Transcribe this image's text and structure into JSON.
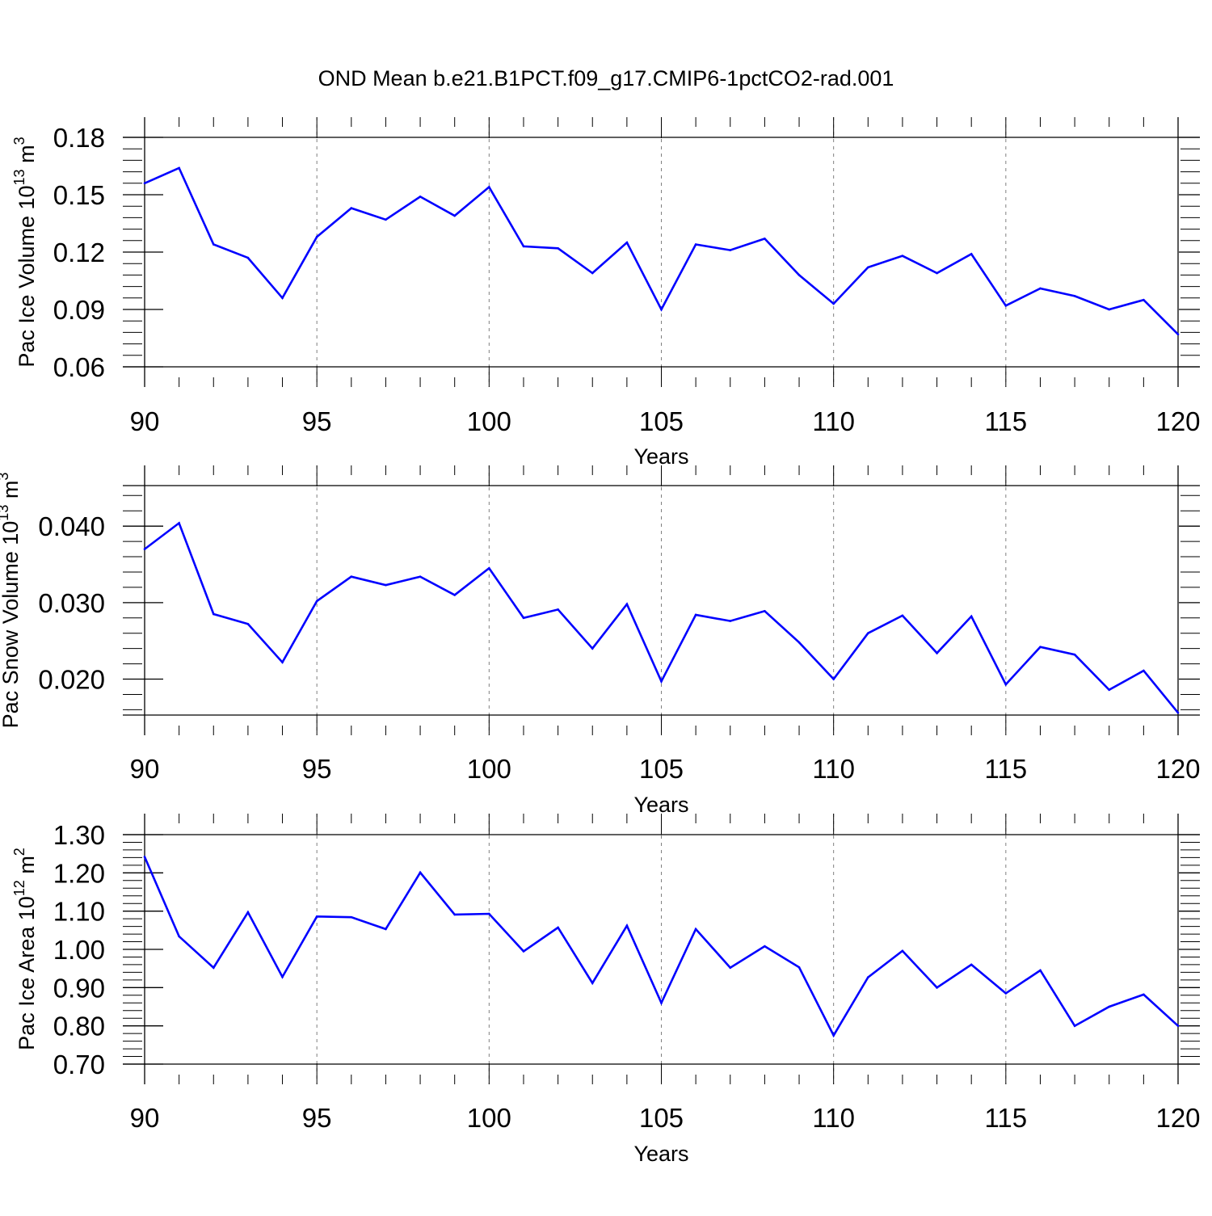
{
  "title": "OND Mean b.e21.B1PCT.f09_g17.CMIP6-1pctCO2-rad.001",
  "colors": {
    "line": "#0000ff",
    "axis": "#000000",
    "grid": "#808080"
  },
  "chart_data": [
    {
      "type": "line",
      "ylabel_base": "Pac Ice Volume 10",
      "ylabel_exp": "13",
      "ylabel_unit": " m",
      "ylabel_unit_exp": "3",
      "xlabel": "Years",
      "xlim": [
        90,
        120
      ],
      "ylim": [
        0.06,
        0.18
      ],
      "xticks": [
        "90",
        "95",
        "100",
        "105",
        "110",
        "115",
        "120"
      ],
      "yticks": [
        "0.06",
        "0.09",
        "0.12",
        "0.15",
        "0.18"
      ],
      "ytick_values": [
        0.06,
        0.09,
        0.12,
        0.15,
        0.18
      ],
      "grid_x": [
        95,
        100,
        105,
        110,
        115
      ],
      "series": [
        {
          "name": "Pac Ice Volume",
          "x": [
            90,
            91,
            92,
            93,
            94,
            95,
            96,
            97,
            98,
            99,
            100,
            101,
            102,
            103,
            104,
            105,
            106,
            107,
            108,
            109,
            110,
            111,
            112,
            113,
            114,
            115,
            116,
            117,
            118,
            119,
            120
          ],
          "values": [
            0.156,
            0.164,
            0.124,
            0.117,
            0.096,
            0.128,
            0.143,
            0.137,
            0.149,
            0.139,
            0.154,
            0.123,
            0.122,
            0.109,
            0.125,
            0.09,
            0.124,
            0.121,
            0.127,
            0.108,
            0.093,
            0.112,
            0.118,
            0.109,
            0.119,
            0.092,
            0.101,
            0.097,
            0.09,
            0.095,
            0.077
          ]
        }
      ]
    },
    {
      "type": "line",
      "ylabel_base": "Pac Snow Volume 10",
      "ylabel_exp": "13",
      "ylabel_unit": " m",
      "ylabel_unit_exp": "3",
      "xlabel": "Years",
      "xlim": [
        90,
        120
      ],
      "ylim": [
        0.0153,
        0.0453
      ],
      "xticks": [
        "90",
        "95",
        "100",
        "105",
        "110",
        "115",
        "120"
      ],
      "yticks": [
        "0.020",
        "0.030",
        "0.040"
      ],
      "ytick_values": [
        0.02,
        0.03,
        0.04
      ],
      "grid_x": [
        95,
        100,
        105,
        110,
        115
      ],
      "series": [
        {
          "name": "Pac Snow Volume",
          "x": [
            90,
            91,
            92,
            93,
            94,
            95,
            96,
            97,
            98,
            99,
            100,
            101,
            102,
            103,
            104,
            105,
            106,
            107,
            108,
            109,
            110,
            111,
            112,
            113,
            114,
            115,
            116,
            117,
            118,
            119,
            120
          ],
          "values": [
            0.037,
            0.0404,
            0.0285,
            0.0272,
            0.0222,
            0.0302,
            0.0334,
            0.0323,
            0.0334,
            0.031,
            0.0345,
            0.028,
            0.0291,
            0.024,
            0.0298,
            0.0197,
            0.0284,
            0.0276,
            0.0289,
            0.0248,
            0.02,
            0.026,
            0.0283,
            0.0234,
            0.0282,
            0.0193,
            0.0242,
            0.0232,
            0.0186,
            0.0211,
            0.0156
          ]
        }
      ]
    },
    {
      "type": "line",
      "ylabel_base": "Pac Ice Area 10",
      "ylabel_exp": "12",
      "ylabel_unit": " m",
      "ylabel_unit_exp": "2",
      "xlabel": "Years",
      "xlim": [
        90,
        120
      ],
      "ylim": [
        0.7,
        1.3
      ],
      "xticks": [
        "90",
        "95",
        "100",
        "105",
        "110",
        "115",
        "120"
      ],
      "yticks": [
        "0.70",
        "0.80",
        "0.90",
        "1.00",
        "1.10",
        "1.20",
        "1.30"
      ],
      "ytick_values": [
        0.7,
        0.8,
        0.9,
        1.0,
        1.1,
        1.2,
        1.3
      ],
      "grid_x": [
        95,
        100,
        105,
        110,
        115
      ],
      "series": [
        {
          "name": "Pac Ice Area",
          "x": [
            90,
            91,
            92,
            93,
            94,
            95,
            96,
            97,
            98,
            99,
            100,
            101,
            102,
            103,
            104,
            105,
            106,
            107,
            108,
            109,
            110,
            111,
            112,
            113,
            114,
            115,
            116,
            117,
            118,
            119,
            120
          ],
          "values": [
            1.242,
            1.034,
            0.952,
            1.097,
            0.928,
            1.086,
            1.084,
            1.053,
            1.201,
            1.091,
            1.093,
            0.995,
            1.057,
            0.912,
            1.062,
            0.86,
            1.053,
            0.952,
            1.008,
            0.953,
            0.775,
            0.927,
            0.996,
            0.9,
            0.96,
            0.885,
            0.945,
            0.8,
            0.85,
            0.882,
            0.8
          ]
        }
      ]
    }
  ]
}
